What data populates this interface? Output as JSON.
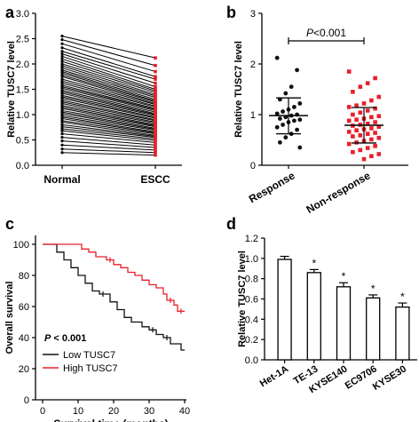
{
  "panels": {
    "a": {
      "letter": "a"
    },
    "b": {
      "letter": "b"
    },
    "c": {
      "letter": "c"
    },
    "d": {
      "letter": "d"
    }
  },
  "chart_data": [
    {
      "id": "a",
      "type": "line",
      "subtype": "paired-lines",
      "title": "",
      "ylabel": "Relative TUSC7 level",
      "xlabel": "",
      "categories": [
        "Normal",
        "ESCC"
      ],
      "ylim": [
        0,
        3.0
      ],
      "yticks": [
        "0.0",
        "0.5",
        "1.0",
        "1.5",
        "2.0",
        "2.5",
        "3.0"
      ],
      "point_color": "#e8202a",
      "pairs": [
        [
          2.55,
          2.12
        ],
        [
          2.48,
          1.97
        ],
        [
          2.4,
          1.85
        ],
        [
          2.32,
          1.75
        ],
        [
          2.25,
          1.7
        ],
        [
          2.2,
          1.62
        ],
        [
          2.15,
          1.55
        ],
        [
          2.1,
          1.5
        ],
        [
          2.05,
          1.47
        ],
        [
          2.0,
          1.44
        ],
        [
          1.96,
          1.4
        ],
        [
          1.92,
          1.37
        ],
        [
          1.88,
          1.34
        ],
        [
          1.85,
          1.3
        ],
        [
          1.82,
          1.27
        ],
        [
          1.78,
          1.25
        ],
        [
          1.75,
          1.22
        ],
        [
          1.7,
          1.2
        ],
        [
          1.66,
          1.17
        ],
        [
          1.62,
          1.15
        ],
        [
          1.58,
          1.12
        ],
        [
          1.55,
          1.1
        ],
        [
          1.52,
          1.08
        ],
        [
          1.48,
          1.05
        ],
        [
          1.45,
          1.02
        ],
        [
          1.42,
          1.0
        ],
        [
          1.38,
          0.98
        ],
        [
          1.35,
          0.95
        ],
        [
          1.32,
          0.93
        ],
        [
          1.28,
          0.9
        ],
        [
          1.25,
          0.88
        ],
        [
          1.22,
          0.85
        ],
        [
          1.18,
          0.83
        ],
        [
          1.15,
          0.8
        ],
        [
          1.12,
          0.78
        ],
        [
          1.08,
          0.76
        ],
        [
          1.05,
          0.73
        ],
        [
          1.02,
          0.71
        ],
        [
          0.98,
          0.69
        ],
        [
          0.95,
          0.66
        ],
        [
          0.92,
          0.64
        ],
        [
          0.88,
          0.62
        ],
        [
          0.85,
          0.59
        ],
        [
          0.8,
          0.57
        ],
        [
          0.76,
          0.55
        ],
        [
          0.72,
          0.52
        ],
        [
          0.68,
          0.49
        ],
        [
          0.62,
          0.45
        ],
        [
          0.55,
          0.4
        ],
        [
          0.48,
          0.35
        ],
        [
          0.4,
          0.3
        ],
        [
          0.32,
          0.25
        ],
        [
          0.25,
          0.2
        ]
      ]
    },
    {
      "id": "b",
      "type": "scatter",
      "title": "",
      "ylabel": "Relative TUSC7 level",
      "xlabel": "",
      "categories": [
        "Response",
        "Non-response"
      ],
      "ylim": [
        0,
        3
      ],
      "yticks": [
        "0",
        "1",
        "2",
        "3"
      ],
      "annotation": {
        "p_label": "P",
        "p_value": "<0.001"
      },
      "groups": [
        {
          "name": "Response",
          "marker": "circle",
          "color": "#111111",
          "mean": 0.98,
          "sd_low": 0.62,
          "sd_high": 1.33,
          "values": [
            2.12,
            1.88,
            1.55,
            1.42,
            1.3,
            1.22,
            1.15,
            1.1,
            1.06,
            1.02,
            1.0,
            0.98,
            0.95,
            0.92,
            0.9,
            0.88,
            0.85,
            0.8,
            0.75,
            0.7,
            0.62,
            0.55,
            0.45,
            0.35
          ]
        },
        {
          "name": "Non-response",
          "marker": "square",
          "color": "#e8202a",
          "mean": 0.79,
          "sd_low": 0.44,
          "sd_high": 1.14,
          "values": [
            1.85,
            1.72,
            1.62,
            1.55,
            1.45,
            1.35,
            1.28,
            1.22,
            1.18,
            1.15,
            1.12,
            1.08,
            1.04,
            1.0,
            0.97,
            0.95,
            0.92,
            0.9,
            0.88,
            0.85,
            0.82,
            0.8,
            0.78,
            0.76,
            0.73,
            0.71,
            0.69,
            0.66,
            0.64,
            0.62,
            0.59,
            0.57,
            0.54,
            0.51,
            0.48,
            0.45,
            0.42,
            0.38,
            0.34,
            0.3,
            0.26,
            0.22,
            0.18,
            0.12
          ]
        }
      ]
    },
    {
      "id": "c",
      "type": "line",
      "subtype": "kaplan-meier",
      "title": "",
      "xlabel": "Survival time (months)",
      "ylabel": "Overall survival",
      "xlim": [
        0,
        40
      ],
      "ylim": [
        0,
        100
      ],
      "xticks": [
        "0",
        "10",
        "20",
        "30",
        "40"
      ],
      "yticks": [
        "0",
        "20",
        "40",
        "60",
        "80",
        "100"
      ],
      "annotation": {
        "p_label": "P",
        "p_value": "< 0.001"
      },
      "legend_position": "bottom-left",
      "series": [
        {
          "name": "Low TUSC7",
          "color": "#111111",
          "steps": [
            [
              0,
              100
            ],
            [
              4,
              100
            ],
            [
              4,
              95
            ],
            [
              6,
              95
            ],
            [
              6,
              90
            ],
            [
              8,
              90
            ],
            [
              8,
              85
            ],
            [
              10,
              85
            ],
            [
              10,
              80
            ],
            [
              12,
              80
            ],
            [
              12,
              75
            ],
            [
              14,
              75
            ],
            [
              14,
              70
            ],
            [
              16,
              70
            ],
            [
              16,
              68
            ],
            [
              19,
              68
            ],
            [
              19,
              63
            ],
            [
              21,
              63
            ],
            [
              21,
              58
            ],
            [
              23,
              58
            ],
            [
              23,
              53
            ],
            [
              25,
              53
            ],
            [
              25,
              50
            ],
            [
              28,
              50
            ],
            [
              28,
              47
            ],
            [
              30,
              47
            ],
            [
              30,
              45
            ],
            [
              32,
              45
            ],
            [
              32,
              42
            ],
            [
              34,
              42
            ],
            [
              34,
              40
            ],
            [
              36,
              40
            ],
            [
              36,
              36
            ],
            [
              39,
              36
            ],
            [
              39,
              32
            ],
            [
              40,
              32
            ]
          ],
          "censor": [
            [
              17,
              68
            ],
            [
              31,
              45
            ],
            [
              35,
              40
            ]
          ]
        },
        {
          "name": "High TUSC7",
          "color": "#e8202a",
          "steps": [
            [
              0,
              100
            ],
            [
              11,
              100
            ],
            [
              11,
              97
            ],
            [
              13,
              97
            ],
            [
              13,
              95
            ],
            [
              15,
              95
            ],
            [
              15,
              92
            ],
            [
              18,
              92
            ],
            [
              18,
              90
            ],
            [
              20,
              90
            ],
            [
              20,
              87
            ],
            [
              22,
              87
            ],
            [
              22,
              85
            ],
            [
              24,
              85
            ],
            [
              24,
              82
            ],
            [
              26,
              82
            ],
            [
              26,
              80
            ],
            [
              28,
              80
            ],
            [
              28,
              77
            ],
            [
              30,
              77
            ],
            [
              30,
              74
            ],
            [
              32,
              74
            ],
            [
              32,
              72
            ],
            [
              34,
              72
            ],
            [
              34,
              68
            ],
            [
              35,
              68
            ],
            [
              35,
              64
            ],
            [
              37,
              64
            ],
            [
              37,
              61
            ],
            [
              38,
              61
            ],
            [
              38,
              57
            ],
            [
              40,
              57
            ]
          ],
          "censor": [
            [
              19,
              90
            ],
            [
              36,
              64
            ],
            [
              39,
              57
            ]
          ]
        }
      ]
    },
    {
      "id": "d",
      "type": "bar",
      "title": "",
      "ylabel": "Relative TUSC7 level",
      "xlabel": "",
      "categories": [
        "Het-1A",
        "TE-13",
        "KYSE140",
        "EC9706",
        "KYSE30"
      ],
      "values": [
        0.99,
        0.86,
        0.72,
        0.61,
        0.52
      ],
      "errors": [
        0.03,
        0.03,
        0.04,
        0.03,
        0.04
      ],
      "significance": [
        "",
        "*",
        "*",
        "*",
        "*"
      ],
      "ylim": [
        0,
        1.2
      ],
      "yticks": [
        "0.0",
        "0.2",
        "0.4",
        "0.6",
        "0.8",
        "1.0",
        "1.2"
      ]
    }
  ]
}
